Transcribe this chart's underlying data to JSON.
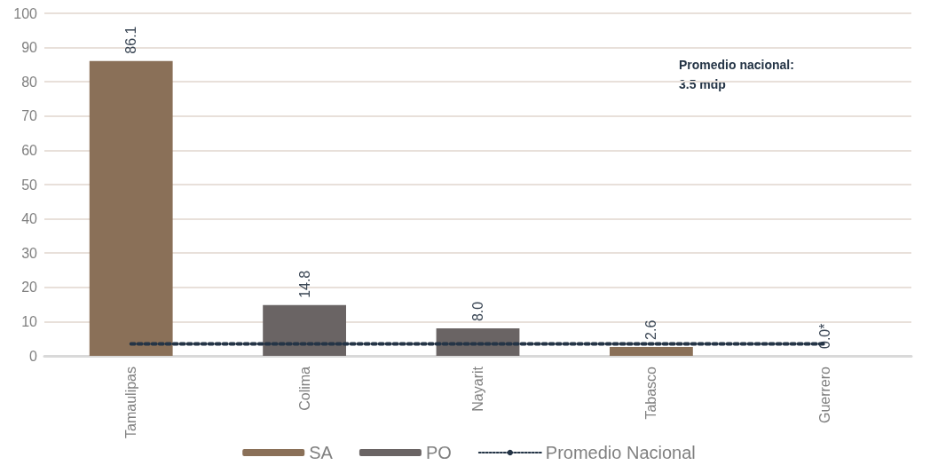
{
  "chart_data": {
    "type": "bar",
    "stacked": true,
    "categories": [
      "Tamaulipas",
      "Colima",
      "Nayarit",
      "Tabasco",
      "Guerrero"
    ],
    "series": [
      {
        "name": "SA",
        "color": "#8a7058",
        "values": [
          86.1,
          null,
          null,
          2.6,
          0.0
        ],
        "value_labels": [
          "86.1",
          null,
          null,
          "2.6",
          "0.0*"
        ]
      },
      {
        "name": "PO",
        "color": "#6a6464",
        "values": [
          null,
          14.8,
          8.0,
          null,
          null
        ],
        "value_labels": [
          null,
          "14.8",
          "8.0",
          null,
          null
        ]
      },
      {
        "name": "Promedio Nacional",
        "type": "line",
        "color": "#243446",
        "line_style": "dotted",
        "values": [
          3.5,
          3.5,
          3.5,
          3.5,
          3.5
        ]
      }
    ],
    "ylim": [
      0,
      100
    ],
    "yticks": [
      0,
      10,
      20,
      30,
      40,
      50,
      60,
      70,
      80,
      90,
      100
    ],
    "grid": "y",
    "legend": "bottom",
    "marker": "none",
    "annotations": [
      "Promedio nacional:\n3.5 mdp"
    ]
  }
}
